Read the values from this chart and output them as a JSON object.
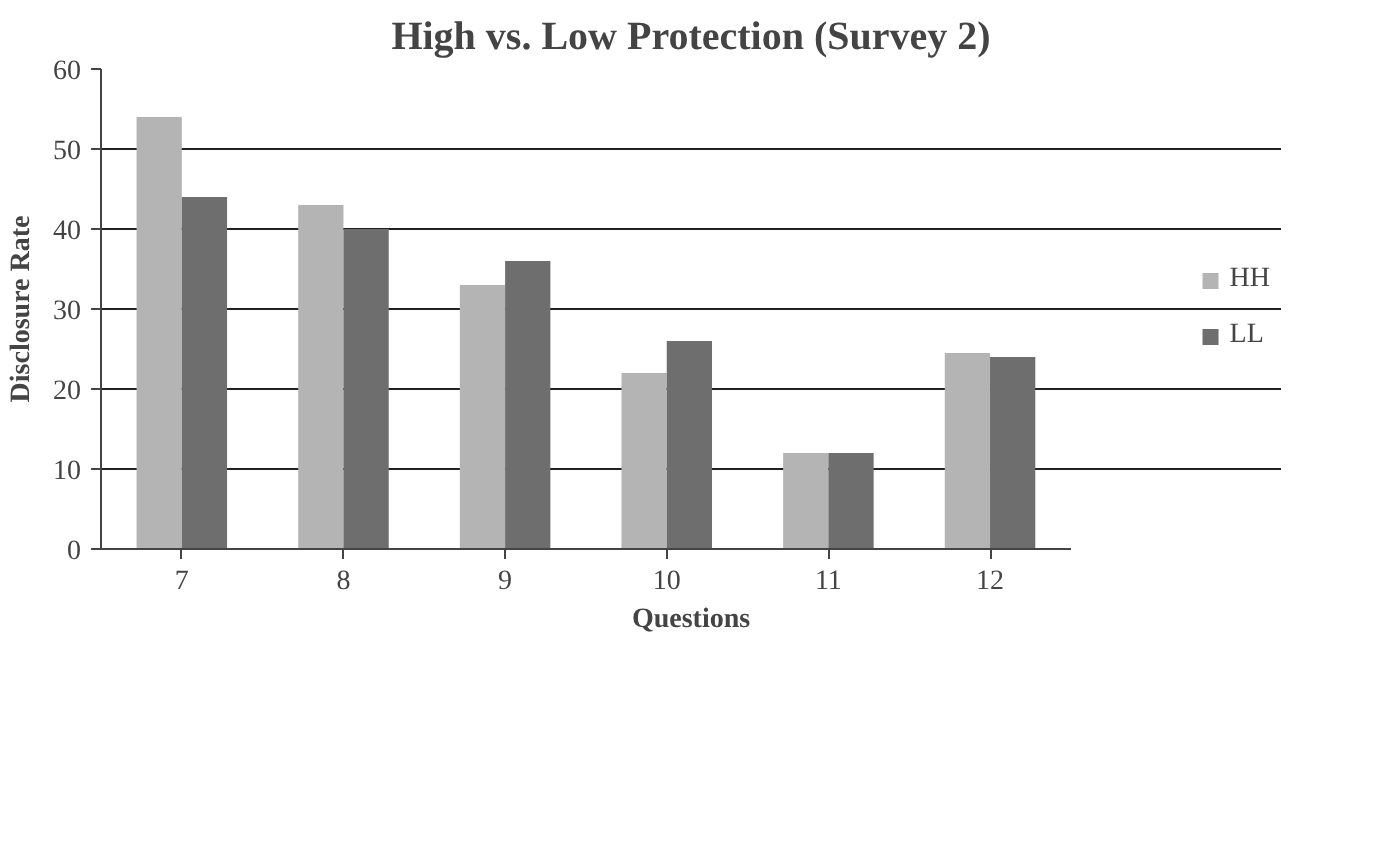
{
  "chart_data": {
    "type": "bar",
    "title": "High vs. Low Protection (Survey 2)",
    "xlabel": "Questions",
    "ylabel": "Disclosure Rate",
    "categories": [
      "7",
      "8",
      "9",
      "10",
      "11",
      "12"
    ],
    "series": [
      {
        "name": "HH",
        "color": "#b4b4b4",
        "values": [
          54,
          43,
          33,
          22,
          12,
          24.5
        ]
      },
      {
        "name": "LL",
        "color": "#6e6e6e",
        "values": [
          44,
          40,
          36,
          26,
          12,
          24
        ]
      }
    ],
    "ylim": [
      0,
      60
    ],
    "yticks": [
      0,
      10,
      20,
      30,
      40,
      50,
      60
    ],
    "grid": "y",
    "legend": "right"
  }
}
